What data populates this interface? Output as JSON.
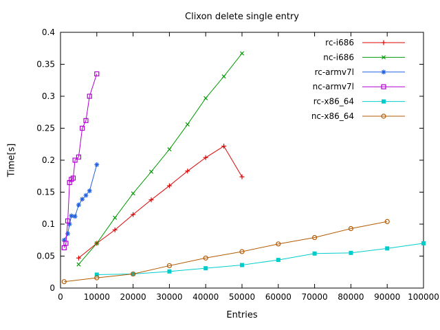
{
  "chart_data": {
    "type": "line",
    "title": "Clixon delete single entry",
    "xlabel": "Entries",
    "ylabel": "Time[s]",
    "xlim": [
      0,
      100000
    ],
    "ylim": [
      0,
      0.4
    ],
    "xticks": [
      0,
      10000,
      20000,
      30000,
      40000,
      50000,
      60000,
      70000,
      80000,
      90000,
      100000
    ],
    "yticks": [
      0,
      0.05,
      0.1,
      0.15,
      0.2,
      0.25,
      0.3,
      0.35,
      0.4
    ],
    "grid": false,
    "legend_position": "top-right-inside",
    "series": [
      {
        "name": "rc-i686",
        "color": "#dd0000",
        "marker": "plus",
        "x": [
          5000,
          10000,
          15000,
          20000,
          25000,
          30000,
          35000,
          40000,
          45000,
          50000
        ],
        "y": [
          0.047,
          0.07,
          0.091,
          0.115,
          0.138,
          0.16,
          0.183,
          0.204,
          0.222,
          0.174
        ]
      },
      {
        "name": "nc-i686",
        "color": "#009900",
        "marker": "cross",
        "x": [
          5000,
          10000,
          15000,
          20000,
          25000,
          30000,
          35000,
          40000,
          45000,
          50000
        ],
        "y": [
          0.037,
          0.07,
          0.11,
          0.148,
          0.182,
          0.217,
          0.256,
          0.297,
          0.331,
          0.367
        ]
      },
      {
        "name": "rc-armv7l",
        "color": "#2060df",
        "marker": "asterisk",
        "x": [
          1000,
          2000,
          2500,
          3000,
          4000,
          5000,
          6000,
          7000,
          8000,
          10000
        ],
        "y": [
          0.075,
          0.085,
          0.1,
          0.113,
          0.112,
          0.13,
          0.139,
          0.145,
          0.152,
          0.193
        ]
      },
      {
        "name": "nc-armv7l",
        "color": "#b000d0",
        "marker": "square-open",
        "x": [
          1000,
          1500,
          2000,
          2500,
          3000,
          3500,
          4000,
          5000,
          6000,
          7000,
          8000,
          10000
        ],
        "y": [
          0.063,
          0.07,
          0.105,
          0.165,
          0.17,
          0.172,
          0.2,
          0.205,
          0.25,
          0.262,
          0.3,
          0.335
        ]
      },
      {
        "name": "rc-x86_64",
        "color": "#00cccc",
        "marker": "square-filled",
        "x": [
          10000,
          20000,
          30000,
          40000,
          50000,
          60000,
          70000,
          80000,
          90000,
          100000
        ],
        "y": [
          0.021,
          0.022,
          0.026,
          0.031,
          0.036,
          0.044,
          0.054,
          0.055,
          0.062,
          0.07
        ]
      },
      {
        "name": "nc-x86_64",
        "color": "#b25900",
        "marker": "circle-open",
        "x": [
          1000,
          10000,
          20000,
          30000,
          40000,
          50000,
          60000,
          70000,
          80000,
          90000
        ],
        "y": [
          0.01,
          0.016,
          0.022,
          0.035,
          0.047,
          0.057,
          0.069,
          0.079,
          0.093,
          0.104
        ]
      }
    ]
  }
}
